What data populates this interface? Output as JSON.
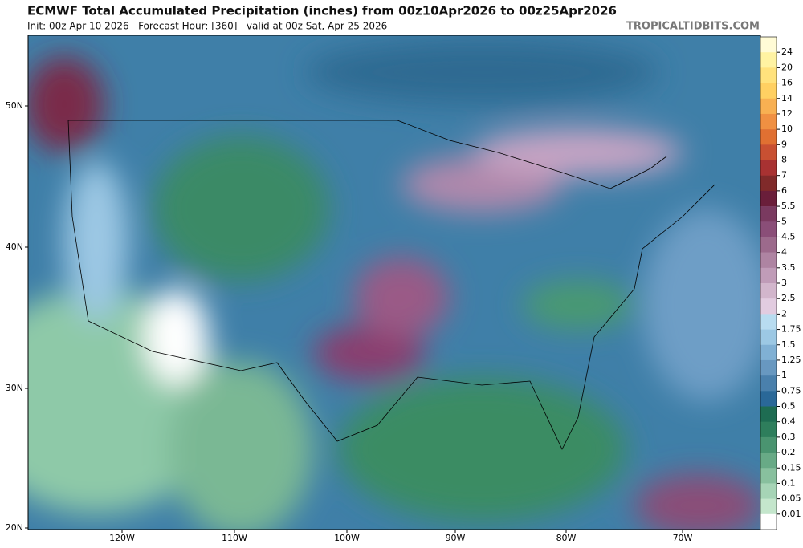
{
  "header": {
    "title": "ECMWF Total Accumulated Precipitation (inches) from 00z10Apr2026 to 00z25Apr2026",
    "subtitle": "Init: 00z Apr 10 2026   Forecast Hour: [360]   valid at 00z Sat, Apr 25 2026",
    "site": "TROPICALTIDBITS.COM"
  },
  "map": {
    "lat_labels": [
      "50N",
      "40N",
      "30N",
      "20N"
    ],
    "lon_labels": [
      "120W",
      "110W",
      "100W",
      "90W",
      "80W",
      "70W"
    ]
  },
  "colorbar": {
    "levels": [
      "24",
      "20",
      "16",
      "14",
      "12",
      "10",
      "9",
      "8",
      "7",
      "6",
      "5.5",
      "5",
      "4.5",
      "4",
      "3.5",
      "3",
      "2.5",
      "2",
      "1.75",
      "1.5",
      "1.25",
      "1",
      "0.75",
      "0.5",
      "0.4",
      "0.3",
      "0.2",
      "0.15",
      "0.1",
      "0.05",
      "0.01"
    ],
    "colors": [
      "#fffbd6",
      "#fff3a2",
      "#ffe27c",
      "#ffd062",
      "#f8b052",
      "#f09042",
      "#e07032",
      "#c85032",
      "#a83232",
      "#802a2a",
      "#6a1e3a",
      "#7a3a60",
      "#8a4e78",
      "#9c6a8c",
      "#ae84a2",
      "#c09cb8",
      "#d2b6cc",
      "#e2cce0",
      "#b8dcf0",
      "#9cc8e4",
      "#80b0d4",
      "#6898c0",
      "#4a80ac",
      "#2a6898",
      "#1e6c52",
      "#2e7e5c",
      "#4a9470",
      "#68aa86",
      "#88c09e",
      "#a6d4b6",
      "#c4e6cc",
      "#ffffff"
    ]
  }
}
